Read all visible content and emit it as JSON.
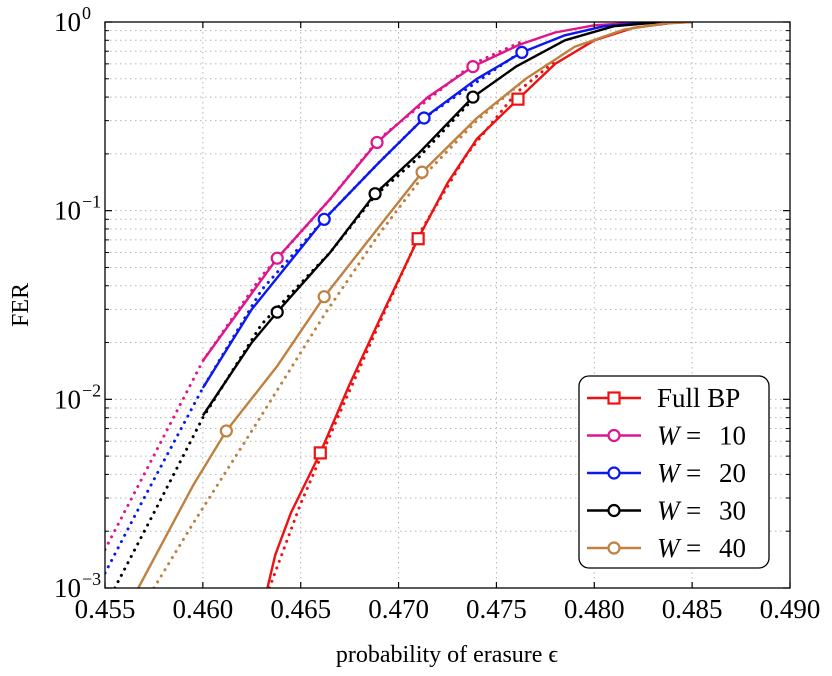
{
  "chart_data": {
    "type": "line",
    "title": "",
    "xlabel": "probability of erasure ϵ",
    "ylabel": "FER",
    "xlim": [
      0.455,
      0.49
    ],
    "ylim": [
      0.001,
      1
    ],
    "yscale": "log",
    "grid": true,
    "legend_position": "bottom-right",
    "x_ticks": [
      {
        "value": 0.455,
        "label": "0.455"
      },
      {
        "value": 0.46,
        "label": "0.460"
      },
      {
        "value": 0.465,
        "label": "0.465"
      },
      {
        "value": 0.47,
        "label": "0.470"
      },
      {
        "value": 0.475,
        "label": "0.475"
      },
      {
        "value": 0.48,
        "label": "0.480"
      },
      {
        "value": 0.485,
        "label": "0.485"
      },
      {
        "value": 0.49,
        "label": "0.490"
      }
    ],
    "y_ticks": [
      {
        "value": 0.001,
        "base": "10",
        "exp": "−3"
      },
      {
        "value": 0.01,
        "base": "10",
        "exp": "−2"
      },
      {
        "value": 0.1,
        "base": "10",
        "exp": "−1"
      },
      {
        "value": 1,
        "base": "10",
        "exp": "0"
      }
    ],
    "series": [
      {
        "name": "Full BP",
        "label_prefix": "Full BP",
        "label_value": "",
        "color": "#ee1111",
        "marker": "square",
        "x": [
          0.4633,
          0.4637,
          0.4645,
          0.466,
          0.4675,
          0.469,
          0.471,
          0.4725,
          0.474,
          0.4761,
          0.478,
          0.48,
          0.482,
          0.484,
          0.485
        ],
        "y": [
          0.001,
          0.0015,
          0.0025,
          0.0052,
          0.012,
          0.026,
          0.071,
          0.14,
          0.24,
          0.39,
          0.6,
          0.8,
          0.93,
          0.99,
          1.0
        ],
        "markers_x": [
          0.466,
          0.471,
          0.4761
        ],
        "markers_y": [
          0.0052,
          0.071,
          0.39
        ],
        "dotted_x": [
          0.4634,
          0.465,
          0.467,
          0.469,
          0.4712,
          0.4735,
          0.476,
          0.478
        ],
        "dotted_y": [
          0.001,
          0.0028,
          0.0085,
          0.025,
          0.08,
          0.2,
          0.42,
          0.62
        ]
      },
      {
        "name": "W = 10",
        "label_prefix": "W",
        "label_value": "10",
        "color": "#e0158a",
        "marker": "circle",
        "x": [
          0.46,
          0.4638,
          0.4665,
          0.4689,
          0.4715,
          0.4738,
          0.4762,
          0.478,
          0.48,
          0.482,
          0.484
        ],
        "y": [
          0.016,
          0.056,
          0.115,
          0.23,
          0.4,
          0.58,
          0.76,
          0.88,
          0.96,
          0.99,
          1.0
        ],
        "markers_x": [
          0.4638,
          0.4689,
          0.4738
        ],
        "markers_y": [
          0.056,
          0.23,
          0.58
        ],
        "dotted_x": [
          0.455,
          0.457,
          0.46,
          0.463,
          0.4665,
          0.469,
          0.4738,
          0.4762
        ],
        "dotted_y": [
          0.0016,
          0.004,
          0.016,
          0.045,
          0.115,
          0.24,
          0.6,
          0.78
        ]
      },
      {
        "name": "W = 20",
        "label_prefix": "W",
        "label_value": "20",
        "color": "#0b18f0",
        "marker": "circle",
        "x": [
          0.46,
          0.4625,
          0.4662,
          0.469,
          0.4713,
          0.474,
          0.4763,
          0.4785,
          0.4805,
          0.4825,
          0.484
        ],
        "y": [
          0.0115,
          0.03,
          0.09,
          0.18,
          0.31,
          0.5,
          0.69,
          0.85,
          0.95,
          0.99,
          1.0
        ],
        "markers_x": [
          0.4662,
          0.4713,
          0.4763
        ],
        "markers_y": [
          0.09,
          0.31,
          0.69
        ],
        "dotted_x": [
          0.455,
          0.457,
          0.46,
          0.463,
          0.4662,
          0.469,
          0.4713,
          0.4763
        ],
        "dotted_y": [
          0.0012,
          0.003,
          0.0115,
          0.038,
          0.09,
          0.18,
          0.31,
          0.7
        ]
      },
      {
        "name": "W = 30",
        "label_prefix": "W",
        "label_value": "30",
        "color": "#000000",
        "marker": "circle",
        "x": [
          0.46,
          0.4625,
          0.4638,
          0.4665,
          0.4688,
          0.471,
          0.4738,
          0.476,
          0.4785,
          0.481,
          0.483,
          0.4845
        ],
        "y": [
          0.0082,
          0.02,
          0.029,
          0.06,
          0.123,
          0.2,
          0.4,
          0.58,
          0.8,
          0.95,
          0.99,
          1.0
        ],
        "markers_x": [
          0.4638,
          0.4688,
          0.4738
        ],
        "markers_y": [
          0.029,
          0.123,
          0.4
        ],
        "dotted_x": [
          0.4555,
          0.4575,
          0.46,
          0.463,
          0.4665,
          0.4688,
          0.471,
          0.4738
        ],
        "dotted_y": [
          0.001,
          0.0025,
          0.008,
          0.025,
          0.06,
          0.12,
          0.19,
          0.39
        ]
      },
      {
        "name": "W = 40",
        "label_prefix": "W",
        "label_value": "40",
        "color": "#bf8040",
        "marker": "circle",
        "x": [
          0.4567,
          0.4595,
          0.4612,
          0.4638,
          0.4662,
          0.469,
          0.4712,
          0.474,
          0.4765,
          0.479,
          0.4815,
          0.4835,
          0.485
        ],
        "y": [
          0.001,
          0.0035,
          0.0068,
          0.015,
          0.035,
          0.082,
          0.16,
          0.31,
          0.5,
          0.74,
          0.91,
          0.98,
          1.0
        ],
        "markers_x": [
          0.4612,
          0.4662,
          0.4712
        ],
        "markers_y": [
          0.0068,
          0.035,
          0.16
        ],
        "dotted_x": [
          0.4575,
          0.4595,
          0.4625,
          0.4662,
          0.469,
          0.4712,
          0.474,
          0.4765
        ],
        "dotted_y": [
          0.001,
          0.0022,
          0.0068,
          0.028,
          0.075,
          0.15,
          0.3,
          0.5
        ]
      }
    ]
  }
}
